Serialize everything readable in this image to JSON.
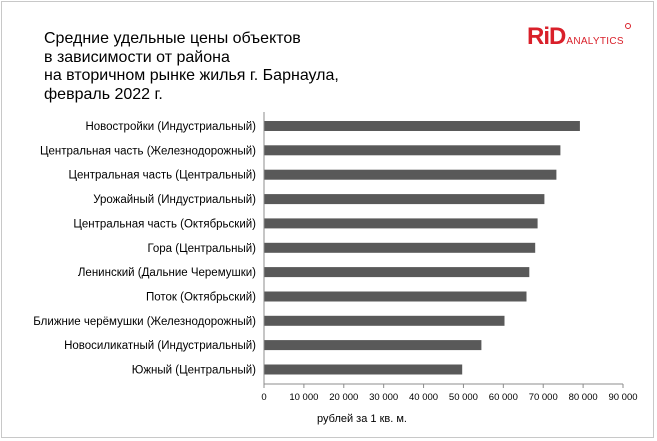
{
  "logo": {
    "brand": "RiD",
    "suffix": "ANALYTICS"
  },
  "chart_data": {
    "type": "bar",
    "orientation": "horizontal",
    "title_lines": [
      "Средние удельные цены объектов",
      "в зависимости от района",
      "на вторичном рынке жилья г. Барнаула,",
      "февраль 2022 г."
    ],
    "categories": [
      "Новостройки (Индустриальный)",
      "Центральная часть (Железнодорожный)",
      "Центральная часть (Центральный)",
      "Урожайный (Индустриальный)",
      "Центральная часть (Октябрьский)",
      "Гора (Центральный)",
      "Ленинский (Дальние Черемушки)",
      "Поток (Октябрьский)",
      "Ближние черёмушки (Железнодорожный)",
      "Новосиликатный (Индустриальный)",
      "Южный (Центральный)"
    ],
    "values": [
      79200,
      74300,
      73300,
      70300,
      68600,
      68000,
      66500,
      65800,
      60300,
      54500,
      49700
    ],
    "xlim": [
      0,
      90000
    ],
    "x_ticks": [
      0,
      10000,
      20000,
      30000,
      40000,
      50000,
      60000,
      70000,
      80000,
      90000
    ],
    "x_tick_labels": [
      "0",
      "10 000",
      "20 000",
      "30 000",
      "40 000",
      "50 000",
      "60 000",
      "70 000",
      "80 000",
      "90 000"
    ],
    "xlabel": "рублей за 1 кв. м.",
    "bar_color": "#595959",
    "grid": false
  }
}
